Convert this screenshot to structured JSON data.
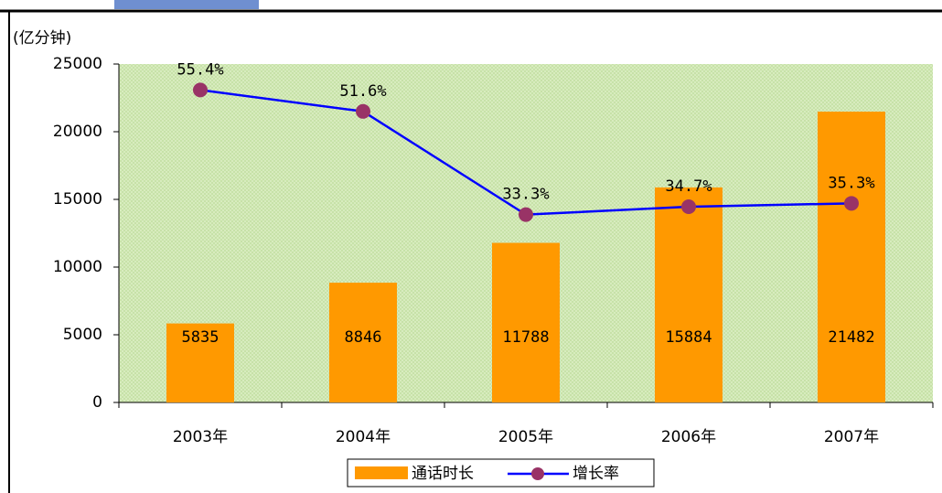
{
  "chart_data": {
    "type": "bar",
    "y_label": "(亿分钟)",
    "categories": [
      "2003年",
      "2004年",
      "2005年",
      "2006年",
      "2007年"
    ],
    "ylim": [
      0,
      25000
    ],
    "yticks": [
      0,
      5000,
      10000,
      15000,
      20000,
      25000
    ],
    "y2lim": [
      0,
      60
    ],
    "series": [
      {
        "name": "通话时长",
        "type": "bar",
        "color": "#ff9900",
        "values": [
          5835,
          8846,
          11788,
          15884,
          21482
        ]
      },
      {
        "name": "增长率",
        "type": "line",
        "axis": "y2",
        "color": "#0000ff",
        "marker_color": "#993366",
        "values": [
          55.4,
          51.6,
          33.3,
          34.7,
          35.3
        ],
        "value_labels": [
          "55.4%",
          "51.6%",
          "33.3%",
          "34.7%",
          "35.3%"
        ]
      }
    ]
  }
}
